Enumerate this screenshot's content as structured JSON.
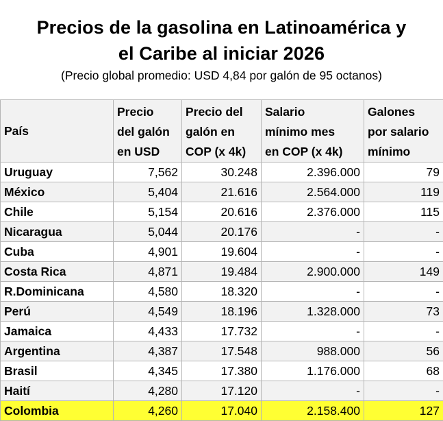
{
  "title": {
    "line1": "Precios de la gasolina en Latinoamérica y",
    "line2": "el Caribe al iniciar 2026",
    "subtitle": "(Precio global promedio: USD 4,84 por galón de 95 octanos)"
  },
  "headers": [
    [
      "País"
    ],
    [
      "Precio",
      "del galón",
      "en USD"
    ],
    [
      "Precio del",
      "galón en",
      "COP (x 4k)"
    ],
    [
      "Salario",
      "mínimo mes",
      "en COP (x 4k)"
    ],
    [
      "Galones",
      "por salario",
      "mínimo"
    ]
  ],
  "rows": [
    [
      "Uruguay",
      "7,562",
      "30.248",
      "2.396.000",
      "79"
    ],
    [
      "México",
      "5,404",
      "21.616",
      "2.564.000",
      "119"
    ],
    [
      "Chile",
      "5,154",
      "20.616",
      "2.376.000",
      "115"
    ],
    [
      "Nicaragua",
      "5,044",
      "20.176",
      "-",
      "-"
    ],
    [
      "Cuba",
      "4,901",
      "19.604",
      "-",
      "-"
    ],
    [
      "Costa Rica",
      "4,871",
      "19.484",
      "2.900.000",
      "149"
    ],
    [
      "R.Dominicana",
      "4,580",
      "18.320",
      "-",
      "-"
    ],
    [
      "Perú",
      "4,549",
      "18.196",
      "1.328.000",
      "73"
    ],
    [
      "Jamaica",
      "4,433",
      "17.732",
      "-",
      "-"
    ],
    [
      "Argentina",
      "4,387",
      "17.548",
      "988.000",
      "56"
    ],
    [
      "Brasil",
      "4,345",
      "17.380",
      "1.176.000",
      "68"
    ],
    [
      "Haití",
      "4,280",
      "17.120",
      "-",
      "-"
    ],
    [
      "Colombia",
      "4,260",
      "17.040",
      "2.158.400",
      "127"
    ]
  ],
  "highlight_row": "Colombia",
  "colors": {
    "highlight": "#ffff33",
    "stripe": "#f2f2f2",
    "grid": "#b5b5b5"
  }
}
